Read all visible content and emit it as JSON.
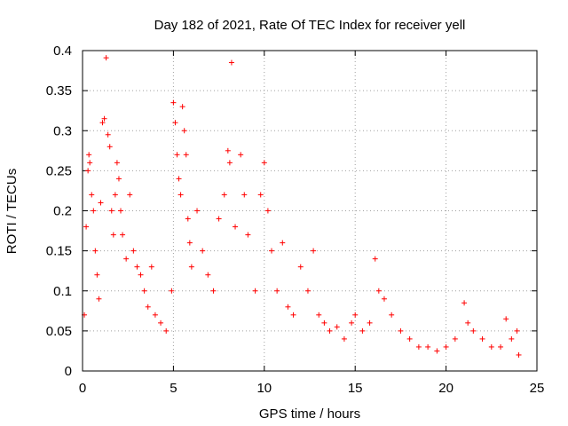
{
  "chart_data": {
    "type": "scatter",
    "title": "Day 182 of 2021, Rate Of TEC Index for receiver yell",
    "xlabel": "GPS time / hours",
    "ylabel": "ROTI / TECUs",
    "xlim": [
      0,
      25
    ],
    "ylim": [
      0,
      0.4
    ],
    "x_ticks": [
      0,
      5,
      10,
      15,
      20,
      25
    ],
    "y_ticks": [
      0,
      0.05,
      0.1,
      0.15,
      0.2,
      0.25,
      0.3,
      0.35,
      0.4
    ],
    "x_tick_labels": [
      "0",
      "5",
      "10",
      "15",
      "20",
      "25"
    ],
    "y_tick_labels": [
      "0",
      "0.05",
      "0.1",
      "0.15",
      "0.2",
      "0.25",
      "0.3",
      "0.35",
      "0.4"
    ],
    "grid": true,
    "marker": "plus",
    "color": "#ff0000",
    "series": [
      {
        "name": "ROTI",
        "points": [
          [
            0.1,
            0.07
          ],
          [
            0.2,
            0.18
          ],
          [
            0.3,
            0.25
          ],
          [
            0.35,
            0.27
          ],
          [
            0.4,
            0.26
          ],
          [
            0.5,
            0.22
          ],
          [
            0.6,
            0.2
          ],
          [
            0.7,
            0.15
          ],
          [
            0.8,
            0.12
          ],
          [
            0.9,
            0.09
          ],
          [
            1.0,
            0.21
          ],
          [
            1.1,
            0.31
          ],
          [
            1.2,
            0.315
          ],
          [
            1.3,
            0.391
          ],
          [
            1.4,
            0.295
          ],
          [
            1.5,
            0.28
          ],
          [
            1.6,
            0.2
          ],
          [
            1.7,
            0.17
          ],
          [
            1.8,
            0.22
          ],
          [
            1.9,
            0.26
          ],
          [
            2.0,
            0.24
          ],
          [
            2.1,
            0.2
          ],
          [
            2.2,
            0.17
          ],
          [
            2.4,
            0.14
          ],
          [
            2.6,
            0.22
          ],
          [
            2.8,
            0.15
          ],
          [
            3.0,
            0.13
          ],
          [
            3.2,
            0.12
          ],
          [
            3.4,
            0.1
          ],
          [
            3.6,
            0.08
          ],
          [
            3.8,
            0.13
          ],
          [
            4.0,
            0.07
          ],
          [
            4.3,
            0.06
          ],
          [
            4.6,
            0.05
          ],
          [
            4.9,
            0.1
          ],
          [
            5.0,
            0.335
          ],
          [
            5.1,
            0.31
          ],
          [
            5.2,
            0.27
          ],
          [
            5.3,
            0.24
          ],
          [
            5.4,
            0.22
          ],
          [
            5.5,
            0.33
          ],
          [
            5.6,
            0.3
          ],
          [
            5.7,
            0.27
          ],
          [
            5.8,
            0.19
          ],
          [
            5.9,
            0.16
          ],
          [
            6.0,
            0.13
          ],
          [
            6.3,
            0.2
          ],
          [
            6.6,
            0.15
          ],
          [
            6.9,
            0.12
          ],
          [
            7.2,
            0.1
          ],
          [
            7.5,
            0.19
          ],
          [
            7.8,
            0.22
          ],
          [
            8.0,
            0.275
          ],
          [
            8.1,
            0.26
          ],
          [
            8.2,
            0.385
          ],
          [
            8.4,
            0.18
          ],
          [
            8.7,
            0.27
          ],
          [
            8.9,
            0.22
          ],
          [
            9.1,
            0.17
          ],
          [
            9.5,
            0.1
          ],
          [
            9.8,
            0.22
          ],
          [
            10.0,
            0.26
          ],
          [
            10.2,
            0.2
          ],
          [
            10.4,
            0.15
          ],
          [
            10.7,
            0.1
          ],
          [
            11.0,
            0.16
          ],
          [
            11.3,
            0.08
          ],
          [
            11.6,
            0.07
          ],
          [
            12.0,
            0.13
          ],
          [
            12.4,
            0.1
          ],
          [
            12.7,
            0.15
          ],
          [
            13.0,
            0.07
          ],
          [
            13.3,
            0.06
          ],
          [
            13.6,
            0.05
          ],
          [
            14.0,
            0.055
          ],
          [
            14.4,
            0.04
          ],
          [
            14.8,
            0.06
          ],
          [
            15.0,
            0.07
          ],
          [
            15.4,
            0.05
          ],
          [
            15.8,
            0.06
          ],
          [
            16.1,
            0.14
          ],
          [
            16.3,
            0.1
          ],
          [
            16.6,
            0.09
          ],
          [
            17.0,
            0.07
          ],
          [
            17.5,
            0.05
          ],
          [
            18.0,
            0.04
          ],
          [
            18.5,
            0.03
          ],
          [
            19.0,
            0.03
          ],
          [
            19.5,
            0.025
          ],
          [
            20.0,
            0.03
          ],
          [
            20.5,
            0.04
          ],
          [
            21.0,
            0.085
          ],
          [
            21.2,
            0.06
          ],
          [
            21.5,
            0.05
          ],
          [
            22.0,
            0.04
          ],
          [
            22.5,
            0.03
          ],
          [
            23.0,
            0.03
          ],
          [
            23.3,
            0.065
          ],
          [
            23.6,
            0.04
          ],
          [
            23.9,
            0.05
          ],
          [
            24.0,
            0.02
          ]
        ]
      }
    ]
  }
}
